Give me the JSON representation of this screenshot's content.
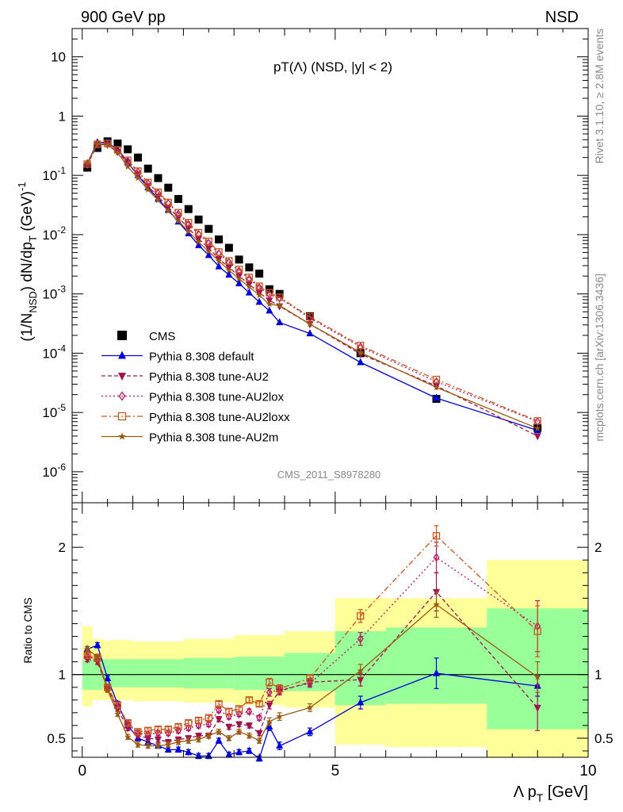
{
  "header": {
    "energy": "900 GeV pp",
    "process": "NSD"
  },
  "side_labels": {
    "rivet": "Rivet 3.1.10, ≥ 2.8M events",
    "mcplots": "mcplots.cern.ch [arXiv:1306.3436]"
  },
  "analysis_id": "CMS_2011_S8978280",
  "chart_data": [
    {
      "type": "scatter",
      "panel": "main",
      "title": "pT(Λ) (NSD, |y| < 2)",
      "ylabel": "(1/N_NSD) dN/dp_T (GeV)^-1",
      "yscale": "log",
      "ylim": [
        3e-07,
        30
      ],
      "xlim": [
        -0.2,
        10
      ],
      "yticks": [
        "10^-6",
        "10^-5",
        "10^-4",
        "10^-3",
        "10^-2",
        "10^-1",
        "1",
        "10"
      ],
      "legend_position": "lower-left",
      "series": [
        {
          "name": "CMS",
          "color": "#000000",
          "marker": "square",
          "line": "none",
          "x": [
            0.1,
            0.3,
            0.5,
            0.7,
            0.9,
            1.1,
            1.3,
            1.5,
            1.7,
            1.9,
            2.1,
            2.3,
            2.5,
            2.7,
            2.9,
            3.1,
            3.3,
            3.5,
            3.7,
            3.9,
            4.5,
            5.5,
            7.0,
            9.0
          ],
          "y": [
            0.135,
            0.29,
            0.375,
            0.345,
            0.275,
            0.2,
            0.13,
            0.09,
            0.062,
            0.04,
            0.027,
            0.018,
            0.0125,
            0.0083,
            0.006,
            0.0038,
            0.0028,
            0.0022,
            0.0012,
            0.001,
            0.00042,
            0.0001,
            1.7e-05,
            5.5e-06
          ]
        },
        {
          "name": "Pythia 8.308 default",
          "color": "#0000dd",
          "marker": "triangle-up",
          "dash": "",
          "x": [
            0.1,
            0.3,
            0.5,
            0.7,
            0.9,
            1.1,
            1.3,
            1.5,
            1.7,
            1.9,
            2.1,
            2.3,
            2.5,
            2.7,
            2.9,
            3.1,
            3.3,
            3.5,
            3.7,
            3.9,
            4.5,
            5.5,
            7.0,
            9.0
          ],
          "y": [
            0.16,
            0.36,
            0.36,
            0.27,
            0.165,
            0.1,
            0.062,
            0.04,
            0.026,
            0.0165,
            0.0105,
            0.0066,
            0.0045,
            0.0029,
            0.0021,
            0.0015,
            0.00105,
            0.00073,
            0.00052,
            0.00033,
            0.000215,
            7e-05,
            1.75e-05,
            5e-06
          ]
        },
        {
          "name": "Pythia 8.308 tune-AU2",
          "color": "#a0134e",
          "marker": "triangle-down",
          "dash": "5,3",
          "x": [
            0.1,
            0.3,
            0.5,
            0.7,
            0.9,
            1.1,
            1.3,
            1.5,
            1.7,
            1.9,
            2.1,
            2.3,
            2.5,
            2.7,
            2.9,
            3.1,
            3.3,
            3.5,
            3.7,
            3.9,
            4.5,
            5.5,
            7.0,
            9.0
          ],
          "y": [
            0.15,
            0.33,
            0.33,
            0.25,
            0.16,
            0.105,
            0.066,
            0.044,
            0.029,
            0.0195,
            0.0128,
            0.0085,
            0.0059,
            0.0039,
            0.0028,
            0.002,
            0.00146,
            0.00105,
            0.00078,
            0.00062,
            0.00031,
            9.7e-05,
            2.8e-05,
            4e-06
          ]
        },
        {
          "name": "Pythia 8.308 tune-AU2lox",
          "color": "#b2195e",
          "marker": "diamond-open",
          "dash": "2,3",
          "x": [
            0.1,
            0.3,
            0.5,
            0.7,
            0.9,
            1.1,
            1.3,
            1.5,
            1.7,
            1.9,
            2.1,
            2.3,
            2.5,
            2.7,
            2.9,
            3.1,
            3.3,
            3.5,
            3.7,
            3.9,
            4.5,
            5.5,
            7.0,
            9.0
          ],
          "y": [
            0.155,
            0.335,
            0.34,
            0.265,
            0.175,
            0.115,
            0.074,
            0.05,
            0.034,
            0.0224,
            0.015,
            0.0102,
            0.0072,
            0.0048,
            0.0034,
            0.00245,
            0.0018,
            0.00128,
            0.00098,
            0.00085,
            0.00039,
            0.000128,
            3.3e-05,
            7e-06
          ]
        },
        {
          "name": "Pythia 8.308 tune-AU2loxx",
          "color": "#c8541f",
          "marker": "square-open",
          "dash": "7,3,2,3",
          "x": [
            0.1,
            0.3,
            0.5,
            0.7,
            0.9,
            1.1,
            1.3,
            1.5,
            1.7,
            1.9,
            2.1,
            2.3,
            2.5,
            2.7,
            2.9,
            3.1,
            3.3,
            3.5,
            3.7,
            3.9,
            4.5,
            5.5,
            7.0,
            9.0
          ],
          "y": [
            0.155,
            0.335,
            0.345,
            0.27,
            0.18,
            0.118,
            0.076,
            0.052,
            0.035,
            0.0235,
            0.016,
            0.0108,
            0.0077,
            0.0051,
            0.0036,
            0.0026,
            0.0019,
            0.00135,
            0.00105,
            0.00088,
            0.00041,
            0.000135,
            3.6e-05,
            7.2e-06
          ]
        },
        {
          "name": "Pythia 8.308 tune-AU2m",
          "color": "#9c5a10",
          "marker": "star",
          "dash": "",
          "x": [
            0.1,
            0.3,
            0.5,
            0.7,
            0.9,
            1.1,
            1.3,
            1.5,
            1.7,
            1.9,
            2.1,
            2.3,
            2.5,
            2.7,
            2.9,
            3.1,
            3.3,
            3.5,
            3.7,
            3.9,
            4.5,
            5.5,
            7.0,
            9.0
          ],
          "y": [
            0.16,
            0.34,
            0.33,
            0.24,
            0.14,
            0.09,
            0.057,
            0.038,
            0.025,
            0.017,
            0.0113,
            0.0075,
            0.0052,
            0.0036,
            0.0025,
            0.0018,
            0.00132,
            0.00095,
            0.00067,
            0.00064,
            0.00031,
            0.000103,
            2.65e-05,
            5.4e-06
          ]
        }
      ]
    },
    {
      "type": "line",
      "panel": "ratio",
      "ylabel": "Ratio to CMS",
      "xlabel": "Λ p_T [GeV]",
      "xlim": [
        -0.2,
        10
      ],
      "ylim": [
        0.35,
        2.35
      ],
      "xticks": [
        0,
        5,
        10
      ],
      "yticks": [
        0.5,
        1,
        2
      ],
      "bands": [
        {
          "xlo": 0.0,
          "xhi": 0.2,
          "g_lo": 0.88,
          "g_hi": 1.12,
          "y_lo": 0.75,
          "y_hi": 1.38
        },
        {
          "xlo": 0.2,
          "xhi": 0.4,
          "g_lo": 0.88,
          "g_hi": 1.13,
          "y_lo": 0.8,
          "y_hi": 1.28
        },
        {
          "xlo": 0.4,
          "xhi": 1.0,
          "g_lo": 0.9,
          "g_hi": 1.12,
          "y_lo": 0.8,
          "y_hi": 1.27
        },
        {
          "xlo": 1.0,
          "xhi": 2.0,
          "g_lo": 0.9,
          "g_hi": 1.12,
          "y_lo": 0.79,
          "y_hi": 1.26
        },
        {
          "xlo": 2.0,
          "xhi": 3.0,
          "g_lo": 0.89,
          "g_hi": 1.13,
          "y_lo": 0.78,
          "y_hi": 1.28
        },
        {
          "xlo": 3.0,
          "xhi": 4.0,
          "g_lo": 0.88,
          "g_hi": 1.14,
          "y_lo": 0.76,
          "y_hi": 1.31
        },
        {
          "xlo": 4.0,
          "xhi": 5.0,
          "g_lo": 0.87,
          "g_hi": 1.17,
          "y_lo": 0.74,
          "y_hi": 1.34
        },
        {
          "xlo": 5.0,
          "xhi": 6.0,
          "g_lo": 0.76,
          "g_hi": 1.34,
          "y_lo": 0.45,
          "y_hi": 1.6
        },
        {
          "xlo": 6.0,
          "xhi": 8.0,
          "g_lo": 0.77,
          "g_hi": 1.37,
          "y_lo": 0.43,
          "y_hi": 1.6
        },
        {
          "xlo": 8.0,
          "xhi": 10.0,
          "g_lo": 0.57,
          "g_hi": 1.52,
          "y_lo": 0.35,
          "y_hi": 1.9
        }
      ],
      "series": [
        {
          "name": "Pythia 8.308 default",
          "color": "#0000dd",
          "marker": "triangle-up",
          "dash": "",
          "x": [
            0.1,
            0.3,
            0.5,
            0.7,
            0.9,
            1.1,
            1.3,
            1.5,
            1.7,
            1.9,
            2.1,
            2.3,
            2.5,
            2.7,
            2.9,
            3.1,
            3.3,
            3.5,
            3.7,
            3.9,
            4.5,
            5.5,
            7.0,
            9.0
          ],
          "y": [
            1.2,
            1.23,
            0.97,
            0.77,
            0.6,
            0.5,
            0.47,
            0.44,
            0.41,
            0.41,
            0.39,
            0.36,
            0.36,
            0.48,
            0.37,
            0.39,
            0.4,
            0.34,
            0.59,
            0.44,
            0.55,
            0.78,
            1.01,
            0.91
          ],
          "err": [
            0.02,
            0.02,
            0.02,
            0.02,
            0.02,
            0.02,
            0.02,
            0.02,
            0.02,
            0.02,
            0.02,
            0.02,
            0.02,
            0.02,
            0.02,
            0.02,
            0.02,
            0.02,
            0.03,
            0.03,
            0.03,
            0.05,
            0.12,
            0.08
          ]
        },
        {
          "name": "Pythia 8.308 tune-AU2",
          "color": "#a0134e",
          "marker": "triangle-down",
          "dash": "5,3",
          "x": [
            0.1,
            0.3,
            0.5,
            0.7,
            0.9,
            1.1,
            1.3,
            1.5,
            1.7,
            1.9,
            2.1,
            2.3,
            2.5,
            2.7,
            2.9,
            3.1,
            3.3,
            3.5,
            3.7,
            3.9,
            4.5,
            5.5,
            7.0,
            9.0
          ],
          "y": [
            1.12,
            1.1,
            0.89,
            0.73,
            0.58,
            0.52,
            0.5,
            0.49,
            0.47,
            0.49,
            0.5,
            0.52,
            0.52,
            0.65,
            0.59,
            0.61,
            0.6,
            0.54,
            0.76,
            0.87,
            0.94,
            0.96,
            1.65,
            0.74
          ],
          "err": [
            0.02,
            0.02,
            0.02,
            0.02,
            0.02,
            0.02,
            0.02,
            0.02,
            0.02,
            0.02,
            0.02,
            0.02,
            0.02,
            0.02,
            0.02,
            0.02,
            0.02,
            0.02,
            0.03,
            0.03,
            0.03,
            0.05,
            0.15,
            0.18
          ]
        },
        {
          "name": "Pythia 8.308 tune-AU2lox",
          "color": "#b2195e",
          "marker": "diamond-open",
          "dash": "2,3",
          "x": [
            0.1,
            0.3,
            0.5,
            0.7,
            0.9,
            1.1,
            1.3,
            1.5,
            1.7,
            1.9,
            2.1,
            2.3,
            2.5,
            2.7,
            2.9,
            3.1,
            3.3,
            3.5,
            3.7,
            3.9,
            4.5,
            5.5,
            7.0,
            9.0
          ],
          "y": [
            1.14,
            1.12,
            0.89,
            0.75,
            0.61,
            0.54,
            0.53,
            0.54,
            0.54,
            0.56,
            0.58,
            0.6,
            0.61,
            0.72,
            0.67,
            0.69,
            0.71,
            0.66,
            0.86,
            0.88,
            0.93,
            1.28,
            1.92,
            1.38
          ],
          "err": [
            0.02,
            0.02,
            0.02,
            0.02,
            0.02,
            0.02,
            0.02,
            0.02,
            0.02,
            0.02,
            0.02,
            0.02,
            0.02,
            0.02,
            0.02,
            0.02,
            0.02,
            0.02,
            0.03,
            0.03,
            0.03,
            0.05,
            0.12,
            0.2
          ]
        },
        {
          "name": "Pythia 8.308 tune-AU2loxx",
          "color": "#c8541f",
          "marker": "square-open",
          "dash": "7,3,2,3",
          "x": [
            0.1,
            0.3,
            0.5,
            0.7,
            0.9,
            1.1,
            1.3,
            1.5,
            1.7,
            1.9,
            2.1,
            2.3,
            2.5,
            2.7,
            2.9,
            3.1,
            3.3,
            3.5,
            3.7,
            3.9,
            4.5,
            5.5,
            7.0,
            9.0
          ],
          "y": [
            1.15,
            1.13,
            0.9,
            0.76,
            0.62,
            0.55,
            0.56,
            0.57,
            0.57,
            0.59,
            0.62,
            0.64,
            0.66,
            0.77,
            0.71,
            0.73,
            0.8,
            0.77,
            0.94,
            0.89,
            0.97,
            1.46,
            2.09,
            1.34
          ],
          "err": [
            0.02,
            0.02,
            0.02,
            0.02,
            0.02,
            0.02,
            0.02,
            0.02,
            0.02,
            0.02,
            0.02,
            0.02,
            0.02,
            0.02,
            0.02,
            0.02,
            0.02,
            0.02,
            0.03,
            0.03,
            0.03,
            0.05,
            0.08,
            0.2
          ]
        },
        {
          "name": "Pythia 8.308 tune-AU2m",
          "color": "#9c5a10",
          "marker": "star",
          "dash": "",
          "x": [
            0.1,
            0.3,
            0.5,
            0.7,
            0.9,
            1.1,
            1.3,
            1.5,
            1.7,
            1.9,
            2.1,
            2.3,
            2.5,
            2.7,
            2.9,
            3.1,
            3.3,
            3.5,
            3.7,
            3.9,
            4.5,
            5.5,
            7.0,
            9.0
          ],
          "y": [
            1.2,
            1.14,
            0.88,
            0.69,
            0.51,
            0.45,
            0.44,
            0.44,
            0.45,
            0.47,
            0.48,
            0.49,
            0.52,
            0.55,
            0.5,
            0.55,
            0.52,
            0.48,
            0.63,
            0.67,
            0.74,
            1.03,
            1.55,
            0.98
          ],
          "err": [
            0.02,
            0.02,
            0.02,
            0.02,
            0.02,
            0.02,
            0.02,
            0.02,
            0.02,
            0.02,
            0.02,
            0.02,
            0.02,
            0.02,
            0.02,
            0.02,
            0.02,
            0.02,
            0.03,
            0.03,
            0.03,
            0.05,
            0.1,
            0.12
          ]
        }
      ]
    }
  ]
}
